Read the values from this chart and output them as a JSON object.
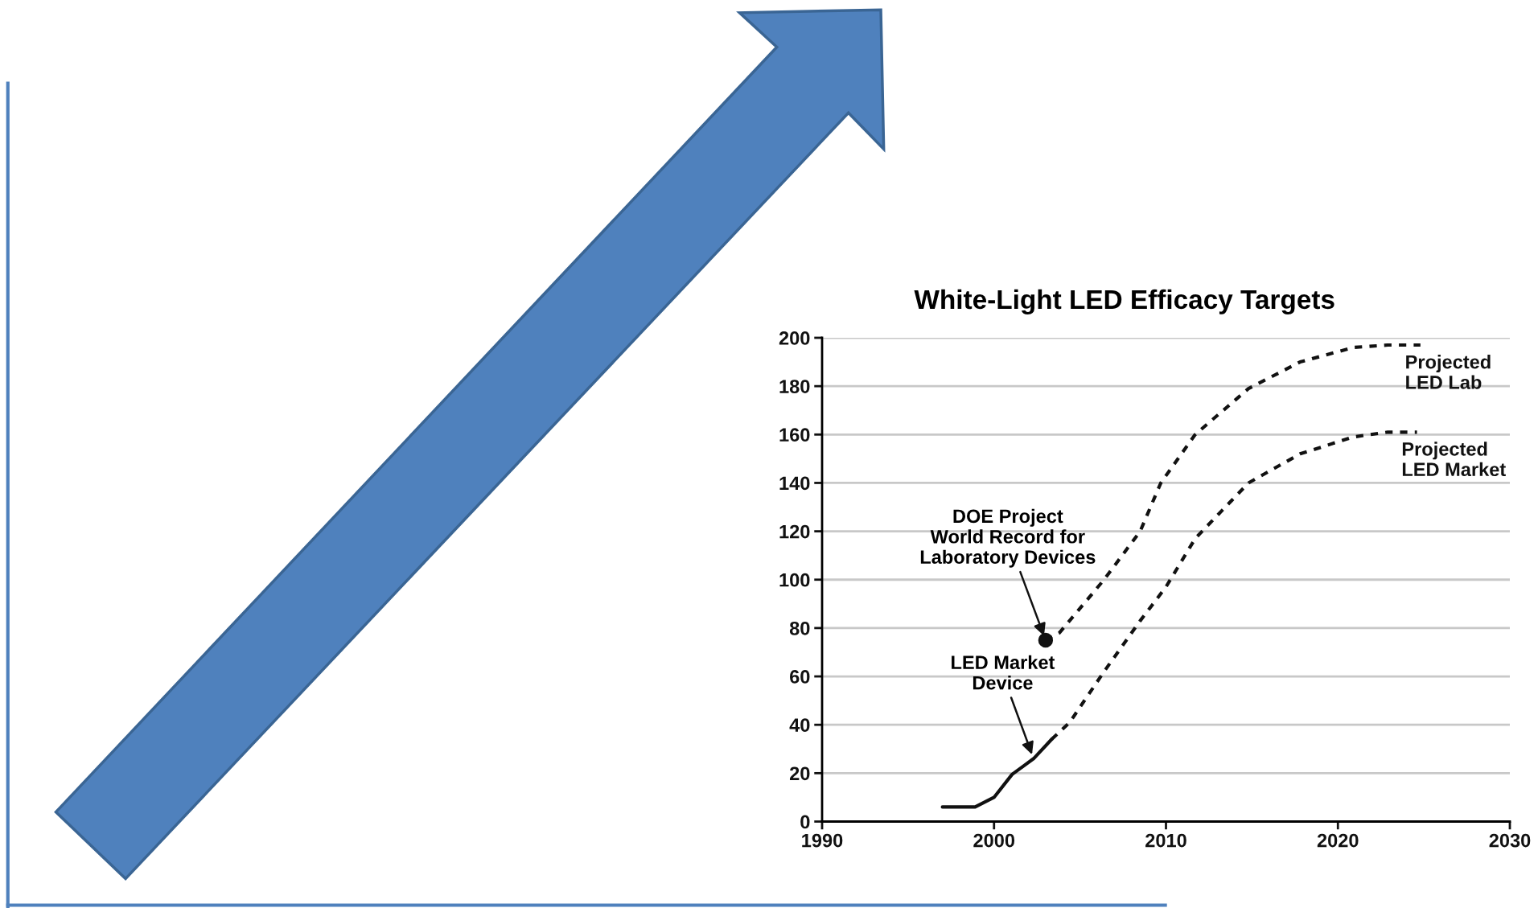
{
  "chart_data": {
    "type": "line",
    "title": "White-Light LED Efficacy Targets",
    "xlim": [
      1990,
      2030
    ],
    "xticks": [
      1990,
      2000,
      2010,
      2020,
      2030
    ],
    "ylim": [
      0,
      200
    ],
    "yticks": [
      0,
      20,
      40,
      60,
      80,
      100,
      120,
      140,
      160,
      180,
      200
    ],
    "grid": "y",
    "marker": "none",
    "series": [
      {
        "color": "#111111",
        "line_style": "solid",
        "x": [
          1997.0,
          1998.9,
          2000.0,
          2001.05,
          2002.3,
          2003.35
        ],
        "values": [
          6,
          6,
          10,
          19.5,
          26,
          34
        ]
      },
      {
        "name": "Projected\nLED Market",
        "color": "#111111",
        "line_style": "dashed",
        "x": [
          2003.35,
          2004.4,
          2006.4,
          2008.5,
          2010.0,
          2011.7,
          2014.8,
          2017.8,
          2020.9,
          2022.9,
          2024.6
        ],
        "values": [
          34,
          41,
          62,
          83,
          97,
          117,
          140,
          152,
          159,
          161,
          161
        ]
      },
      {
        "type": "scatter",
        "marker": "circle",
        "color": "#111111",
        "x": [
          2003.0
        ],
        "values": [
          75
        ]
      },
      {
        "name": "Projected\nLED Lab",
        "color": "#111111",
        "line_style": "dashed",
        "x": [
          2003.0,
          2003.8,
          2006.4,
          2008.5,
          2009.7,
          2011.7,
          2014.8,
          2017.8,
          2020.9,
          2022.9,
          2024.8
        ],
        "values": [
          75,
          78,
          100,
          120,
          140,
          160,
          179,
          190,
          196,
          197,
          197
        ]
      }
    ],
    "annotations": [
      {
        "text": "DOE Project\nWorld Record for\nLaboratory Devices",
        "x": 2003.0,
        "y": 75
      },
      {
        "text": "LED Market\nDevice",
        "x": 2002.3,
        "y": 26
      }
    ]
  }
}
